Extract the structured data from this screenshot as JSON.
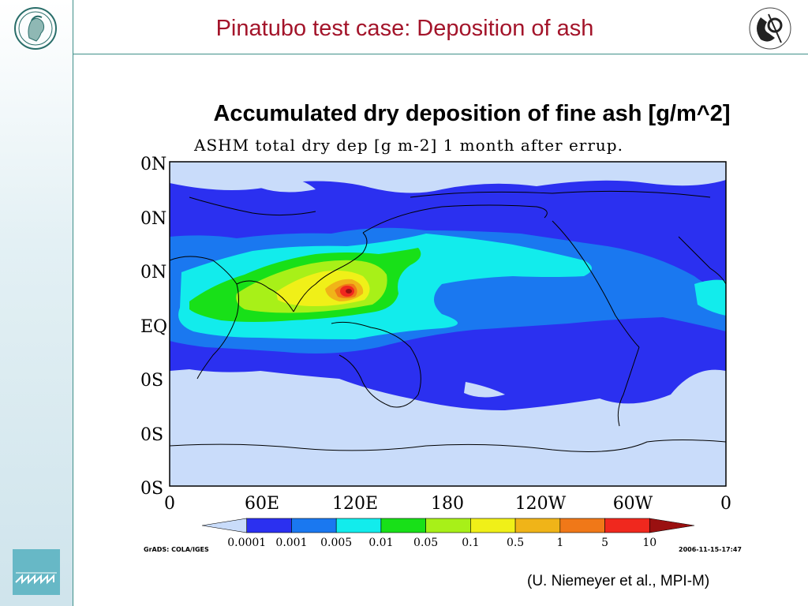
{
  "slide": {
    "title": "Pinatubo test case: Deposition of ash",
    "subtitle": "Accumulated dry deposition of fine ash [g/m^2]",
    "credit": "(U. Niemeyer et al., MPI-M)",
    "title_color": "#a3142a",
    "accent_color": "#3f8f89"
  },
  "figure": {
    "title": "ASHM total dry dep [g m-2] 1 month after errup.",
    "footer_left": "GrADS: COLA/IGES",
    "footer_right": "2006-11-15-17:47",
    "lat_ticks": [
      "0N",
      "0N",
      "0N",
      "EQ",
      "0S",
      "0S",
      "0S"
    ],
    "lon_ticks": [
      "0",
      "60E",
      "120E",
      "180",
      "120W",
      "60W",
      "0"
    ],
    "colorbar": {
      "labels": [
        "0.0001",
        "0.001",
        "0.005",
        "0.01",
        "0.05",
        "0.1",
        "0.5",
        "1",
        "5",
        "10"
      ],
      "colors": [
        "#c9dcfa",
        "#2b30f0",
        "#1a78f0",
        "#12ecec",
        "#18e018",
        "#a8f018",
        "#f0f018",
        "#f0b418",
        "#f07818",
        "#f0281e",
        "#9a1010"
      ]
    }
  },
  "icons": {
    "left_logo": "minerva-logo-icon",
    "right_logo": "institute-emblem-icon",
    "bottom_logo": "zmaw-logo-icon"
  }
}
